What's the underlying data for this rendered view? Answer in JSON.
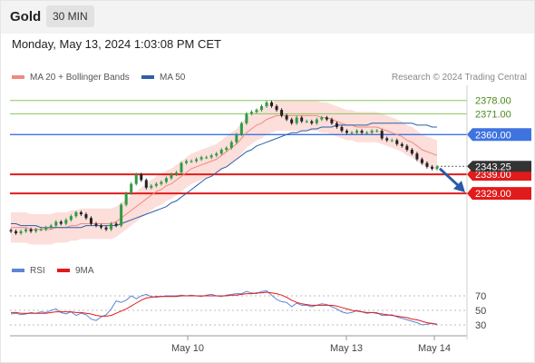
{
  "header": {
    "symbol": "Gold",
    "timeframe": "30 MIN",
    "datetime": "Monday, May 13, 2024 1:03:08 PM CET"
  },
  "legend": {
    "ma20_label": "MA 20 + Bollinger Bands",
    "ma50_label": "MA 50",
    "credit": "Research © 2024 Trading Central"
  },
  "rsi_legend": {
    "rsi_label": "RSI",
    "ma_label": "9MA"
  },
  "colors": {
    "ma20": "#f08a80",
    "ma50": "#2f5fa8",
    "bands": "#fbd3cf",
    "resistance_green": "#8cc65a",
    "pivot_blue": "#3f73e0",
    "support_red": "#e11b1b",
    "bull": "#2e9b44",
    "bear": "#222222",
    "arrow": "#2b5aa8",
    "rsi": "#5b86d6",
    "rsi_ma": "#e11b1b"
  },
  "chart_data": [
    {
      "type": "candlestick",
      "title": "Gold 30 MIN",
      "ylim": [
        2296,
        2386
      ],
      "x_ticks": [
        "May 10",
        "May 13",
        "May 14"
      ],
      "current_price": "2343.25",
      "price_levels": [
        {
          "label": "2378.00",
          "value": 2378,
          "kind": "resistance"
        },
        {
          "label": "2371.00",
          "value": 2371,
          "kind": "resistance"
        },
        {
          "label": "2360.00",
          "value": 2360,
          "kind": "pivot"
        },
        {
          "label": "2339.00",
          "value": 2339,
          "kind": "support"
        },
        {
          "label": "2329.00",
          "value": 2329,
          "kind": "support"
        }
      ],
      "close_series": [
        2309,
        2308,
        2309,
        2310,
        2309,
        2310,
        2310,
        2311,
        2312,
        2314,
        2313,
        2315,
        2317,
        2319,
        2318,
        2316,
        2313,
        2312,
        2311,
        2310,
        2313,
        2312,
        2323,
        2329,
        2334,
        2339,
        2336,
        2332,
        2333,
        2334,
        2335,
        2337,
        2339,
        2340,
        2345,
        2346,
        2346,
        2347,
        2348,
        2348,
        2349,
        2350,
        2352,
        2353,
        2356,
        2360,
        2366,
        2371,
        2372,
        2373,
        2375,
        2377,
        2375,
        2373,
        2370,
        2368,
        2366,
        2369,
        2367,
        2367,
        2366,
        2368,
        2369,
        2368,
        2366,
        2364,
        2362,
        2361,
        2361,
        2362,
        2361,
        2361,
        2362,
        2362,
        2358,
        2357,
        2357,
        2355,
        2354,
        2352,
        2350,
        2347,
        2345,
        2343,
        2342,
        2343
      ],
      "ma20_series": [
        2311,
        2311,
        2311,
        2311,
        2310,
        2310,
        2310,
        2310,
        2310,
        2311,
        2311,
        2311,
        2312,
        2312,
        2313,
        2313,
        2313,
        2313,
        2313,
        2313,
        2313,
        2314,
        2316,
        2318,
        2320,
        2322,
        2324,
        2326,
        2328,
        2330,
        2331,
        2333,
        2334,
        2336,
        2338,
        2340,
        2342,
        2343,
        2344,
        2345,
        2346,
        2347,
        2349,
        2351,
        2353,
        2355,
        2358,
        2361,
        2363,
        2365,
        2366,
        2368,
        2369,
        2370,
        2370,
        2370,
        2370,
        2370,
        2370,
        2370,
        2370,
        2370,
        2369,
        2369,
        2368,
        2367,
        2366,
        2365,
        2365,
        2364,
        2364,
        2364,
        2364,
        2364,
        2363,
        2362,
        2361,
        2360,
        2359,
        2357,
        2356,
        2354,
        2352,
        2351,
        2350,
        2349
      ],
      "ma50_series": [
        2313,
        2313,
        2312,
        2312,
        2312,
        2312,
        2311,
        2311,
        2311,
        2311,
        2311,
        2311,
        2311,
        2311,
        2311,
        2312,
        2312,
        2312,
        2312,
        2312,
        2312,
        2312,
        2313,
        2314,
        2315,
        2316,
        2317,
        2318,
        2319,
        2320,
        2321,
        2322,
        2324,
        2325,
        2327,
        2329,
        2331,
        2333,
        2335,
        2337,
        2338,
        2340,
        2342,
        2343,
        2345,
        2347,
        2349,
        2351,
        2352,
        2354,
        2355,
        2356,
        2357,
        2358,
        2359,
        2360,
        2361,
        2361,
        2362,
        2362,
        2363,
        2363,
        2364,
        2364,
        2364,
        2365,
        2365,
        2365,
        2365,
        2365,
        2365,
        2365,
        2366,
        2366,
        2366,
        2366,
        2366,
        2366,
        2366,
        2366,
        2366,
        2365,
        2365,
        2365,
        2364,
        2364
      ],
      "bollinger_band_width": 8
    },
    {
      "type": "line",
      "title": "RSI",
      "ylim": [
        20,
        80
      ],
      "y_ticks": [
        "70",
        "50",
        "30"
      ],
      "series": [
        {
          "name": "RSI",
          "values": [
            45,
            46,
            44,
            45,
            47,
            46,
            48,
            47,
            50,
            52,
            47,
            45,
            48,
            43,
            46,
            44,
            38,
            36,
            41,
            44,
            52,
            63,
            61,
            64,
            70,
            66,
            70,
            72,
            69,
            68,
            69,
            70,
            70,
            70,
            71,
            70,
            71,
            70,
            69,
            71,
            72,
            70,
            69,
            71,
            72,
            73,
            73,
            76,
            74,
            73,
            76,
            77,
            71,
            65,
            62,
            61,
            55,
            60,
            57,
            57,
            55,
            57,
            59,
            58,
            55,
            52,
            48,
            46,
            47,
            50,
            48,
            46,
            47,
            47,
            43,
            43,
            44,
            41,
            39,
            37,
            35,
            33,
            30,
            31,
            32,
            30
          ]
        },
        {
          "name": "9MA",
          "values": [
            47,
            47,
            46,
            46,
            46,
            46,
            46,
            46,
            47,
            48,
            48,
            48,
            48,
            47,
            47,
            46,
            45,
            43,
            42,
            42,
            43,
            46,
            49,
            52,
            56,
            60,
            64,
            67,
            68,
            69,
            69,
            69,
            69,
            69,
            70,
            70,
            70,
            70,
            70,
            70,
            70,
            70,
            70,
            70,
            71,
            71,
            72,
            73,
            73,
            74,
            74,
            75,
            74,
            73,
            71,
            68,
            64,
            61,
            59,
            58,
            57,
            57,
            57,
            57,
            57,
            56,
            54,
            52,
            50,
            49,
            48,
            47,
            47,
            46,
            45,
            44,
            43,
            42,
            41,
            40,
            38,
            37,
            35,
            33,
            32,
            31
          ]
        }
      ]
    }
  ]
}
